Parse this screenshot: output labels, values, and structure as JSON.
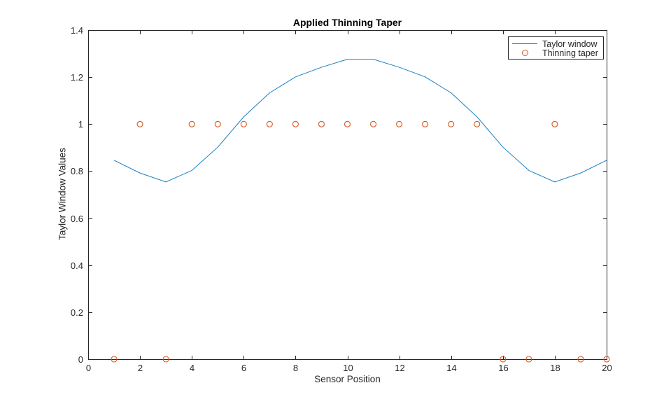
{
  "chart_data": {
    "type": "line",
    "title": "Applied Thinning Taper",
    "xlabel": "Sensor Position",
    "ylabel": "Taylor Window Values",
    "xlim": [
      0,
      20
    ],
    "ylim": [
      0,
      1.4
    ],
    "x_tick_values": [
      0,
      2,
      4,
      6,
      8,
      10,
      12,
      14,
      16,
      18,
      20
    ],
    "x_tick_labels": [
      "0",
      "2",
      "4",
      "6",
      "8",
      "10",
      "12",
      "14",
      "16",
      "18",
      "20"
    ],
    "y_tick_values": [
      0,
      0.2,
      0.4,
      0.6,
      0.8,
      1.0,
      1.2,
      1.4
    ],
    "y_tick_labels": [
      "0",
      "0.2",
      "0.4",
      "0.6",
      "0.8",
      "1",
      "1.2",
      "1.4"
    ],
    "grid": false,
    "legend_position": "top-right",
    "axis_color": "#262626",
    "x": [
      1,
      2,
      3,
      4,
      5,
      6,
      7,
      8,
      9,
      10,
      11,
      12,
      13,
      14,
      15,
      16,
      17,
      18,
      19,
      20
    ],
    "series": [
      {
        "name": "Taylor window",
        "type": "line",
        "color": "#0072BD",
        "values": [
          0.846,
          0.792,
          0.754,
          0.803,
          0.902,
          1.031,
          1.133,
          1.201,
          1.242,
          1.276,
          1.276,
          1.242,
          1.201,
          1.133,
          1.031,
          0.902,
          0.803,
          0.754,
          0.792,
          0.846
        ]
      },
      {
        "name": "Thinning taper",
        "type": "scatter",
        "marker": "open-circle",
        "color": "#D95319",
        "values": [
          0,
          1,
          0,
          1,
          1,
          1,
          1,
          1,
          1,
          1,
          1,
          1,
          1,
          1,
          1,
          0,
          0,
          1,
          0,
          0
        ]
      }
    ]
  }
}
